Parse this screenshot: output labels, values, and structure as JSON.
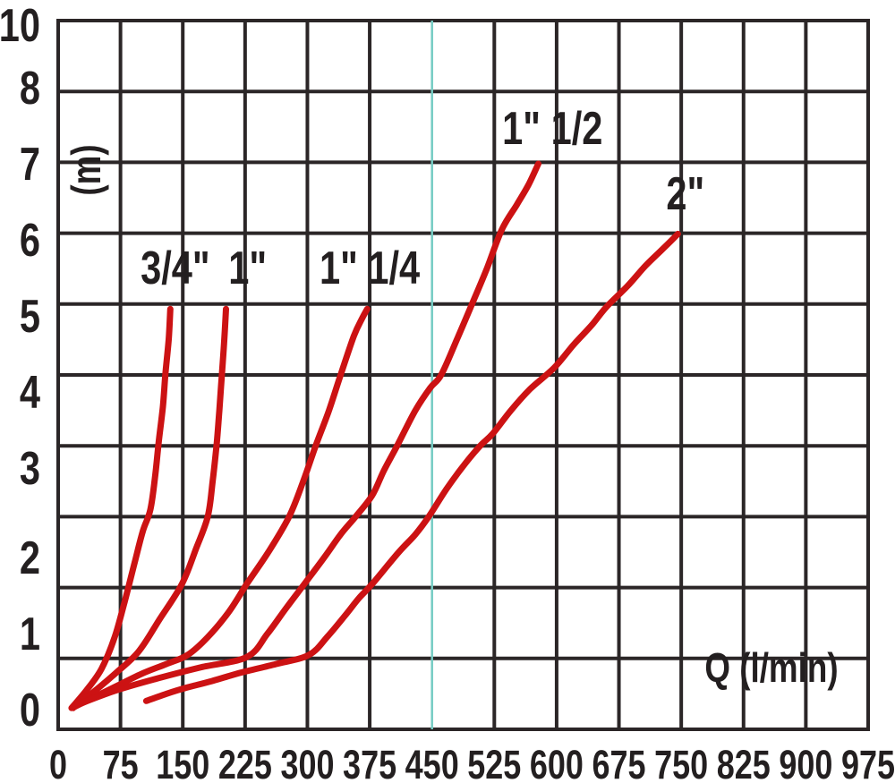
{
  "chart_data": {
    "type": "line",
    "title": "",
    "xlabel": "Q (l/min)",
    "ylabel": "(m)",
    "xlim": [
      0,
      975
    ],
    "ylim": [
      0,
      10
    ],
    "x_ticks": [
      0,
      75,
      150,
      225,
      300,
      375,
      450,
      525,
      600,
      675,
      750,
      825,
      900,
      975
    ],
    "y_ticks_labeled": [
      10,
      8,
      7,
      6,
      5,
      4,
      3,
      2,
      1,
      0
    ],
    "y_gridlines": [
      0,
      1,
      2,
      3,
      4,
      5,
      6,
      7,
      8,
      9,
      10
    ],
    "grid": true,
    "legend_position": "labels-at-curve-tops",
    "highlight_vline": {
      "x": 450
    },
    "series": [
      {
        "name": "3/4\"",
        "label_at": [
          141,
          6.55
        ],
        "points": [
          [
            16,
            0.3
          ],
          [
            34,
            0.55
          ],
          [
            52,
            0.85
          ],
          [
            68,
            1.3
          ],
          [
            80,
            1.8
          ],
          [
            92,
            2.35
          ],
          [
            102,
            2.8
          ],
          [
            111,
            3.1
          ],
          [
            117,
            3.6
          ],
          [
            121,
            4.05
          ],
          [
            126,
            4.55
          ],
          [
            129,
            5.0
          ],
          [
            133,
            5.5
          ],
          [
            135,
            5.93
          ]
        ]
      },
      {
        "name": "1\"",
        "label_at": [
          228,
          6.55
        ],
        "points": [
          [
            18,
            0.3
          ],
          [
            45,
            0.55
          ],
          [
            70,
            0.8
          ],
          [
            97,
            1.1
          ],
          [
            122,
            1.55
          ],
          [
            149,
            2.05
          ],
          [
            166,
            2.55
          ],
          [
            180,
            3.0
          ],
          [
            186,
            3.5
          ],
          [
            191,
            4.05
          ],
          [
            194,
            4.5
          ],
          [
            197,
            5.0
          ],
          [
            200,
            5.5
          ],
          [
            202,
            5.93
          ]
        ]
      },
      {
        "name": "1\" 1/4",
        "label_at": [
          375,
          6.55
        ],
        "points": [
          [
            20,
            0.32
          ],
          [
            60,
            0.55
          ],
          [
            100,
            0.78
          ],
          [
            130,
            0.92
          ],
          [
            156,
            1.05
          ],
          [
            180,
            1.3
          ],
          [
            205,
            1.65
          ],
          [
            227,
            2.05
          ],
          [
            253,
            2.5
          ],
          [
            278,
            3.0
          ],
          [
            295,
            3.5
          ],
          [
            310,
            4.0
          ],
          [
            326,
            4.5
          ],
          [
            340,
            5.0
          ],
          [
            356,
            5.55
          ],
          [
            366,
            5.8
          ],
          [
            372,
            5.93
          ]
        ]
      },
      {
        "name": "1\" 1/2",
        "label_at": [
          595,
          8.52
        ],
        "points": [
          [
            24,
            0.35
          ],
          [
            70,
            0.55
          ],
          [
            120,
            0.72
          ],
          [
            170,
            0.87
          ],
          [
            227,
            1.02
          ],
          [
            252,
            1.35
          ],
          [
            275,
            1.72
          ],
          [
            297,
            2.06
          ],
          [
            320,
            2.42
          ],
          [
            340,
            2.75
          ],
          [
            358,
            3.0
          ],
          [
            378,
            3.3
          ],
          [
            392,
            3.65
          ],
          [
            408,
            4.0
          ],
          [
            430,
            4.5
          ],
          [
            448,
            4.82
          ],
          [
            461,
            5.0
          ],
          [
            480,
            5.5
          ],
          [
            500,
            6.05
          ],
          [
            516,
            6.5
          ],
          [
            534,
            7.05
          ],
          [
            552,
            7.4
          ],
          [
            566,
            7.68
          ],
          [
            578,
            7.98
          ]
        ]
      },
      {
        "name": "2\"",
        "label_at": [
          755,
          7.6
        ],
        "points": [
          [
            106,
            0.4
          ],
          [
            130,
            0.5
          ],
          [
            152,
            0.58
          ],
          [
            185,
            0.68
          ],
          [
            220,
            0.8
          ],
          [
            262,
            0.92
          ],
          [
            302,
            1.05
          ],
          [
            325,
            1.32
          ],
          [
            345,
            1.6
          ],
          [
            362,
            1.85
          ],
          [
            378,
            2.05
          ],
          [
            410,
            2.5
          ],
          [
            430,
            2.75
          ],
          [
            446,
            3.0
          ],
          [
            468,
            3.4
          ],
          [
            490,
            3.75
          ],
          [
            508,
            4.0
          ],
          [
            523,
            4.17
          ],
          [
            545,
            4.5
          ],
          [
            568,
            4.8
          ],
          [
            597,
            5.1
          ],
          [
            620,
            5.42
          ],
          [
            642,
            5.7
          ],
          [
            660,
            5.96
          ],
          [
            685,
            6.25
          ],
          [
            707,
            6.54
          ],
          [
            728,
            6.78
          ],
          [
            746,
            6.99
          ]
        ]
      }
    ]
  },
  "colors": {
    "curve_red": "#cc1213",
    "grid_dark": "#2b2627",
    "text_dark": "#231f20",
    "highlight_teal": "#74ccc3",
    "background": "#ffffff"
  }
}
